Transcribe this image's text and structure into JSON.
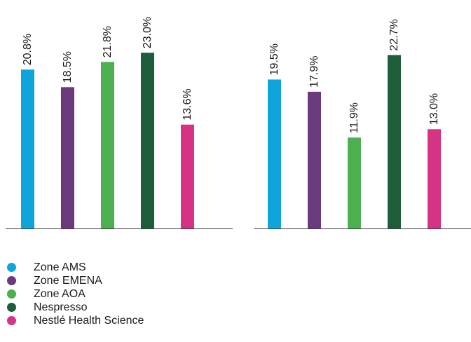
{
  "chart_data": [
    {
      "type": "bar",
      "categories": [
        "Zone AMS",
        "Zone EMENA",
        "Zone AOA",
        "Nespresso",
        "Nestlé Health Science"
      ],
      "values": [
        20.8,
        18.5,
        21.8,
        23.0,
        13.6
      ],
      "data_labels": [
        "20.8%",
        "18.5%",
        "21.8%",
        "23.0%",
        "13.6%"
      ],
      "ylim": [
        0,
        26
      ],
      "grid": false,
      "legend_position": "bottom-left"
    },
    {
      "type": "bar",
      "categories": [
        "Zone AMS",
        "Zone EMENA",
        "Zone AOA",
        "Nespresso",
        "Nestlé Health Science"
      ],
      "values": [
        19.5,
        17.9,
        11.9,
        22.7,
        13.0
      ],
      "data_labels": [
        "19.5%",
        "17.9%",
        "11.9%",
        "22.7%",
        "13.0%"
      ],
      "ylim": [
        0,
        26
      ],
      "grid": false,
      "legend_position": "bottom-left"
    }
  ],
  "legend": {
    "items": [
      {
        "label": "Zone AMS",
        "color": "#0ea5da"
      },
      {
        "label": "Zone EMENA",
        "color": "#6b3a7d"
      },
      {
        "label": "Zone AOA",
        "color": "#4caf50"
      },
      {
        "label": "Nespresso",
        "color": "#1d5e3a"
      },
      {
        "label": "Nestlé Health Science",
        "color": "#d63384"
      }
    ]
  }
}
